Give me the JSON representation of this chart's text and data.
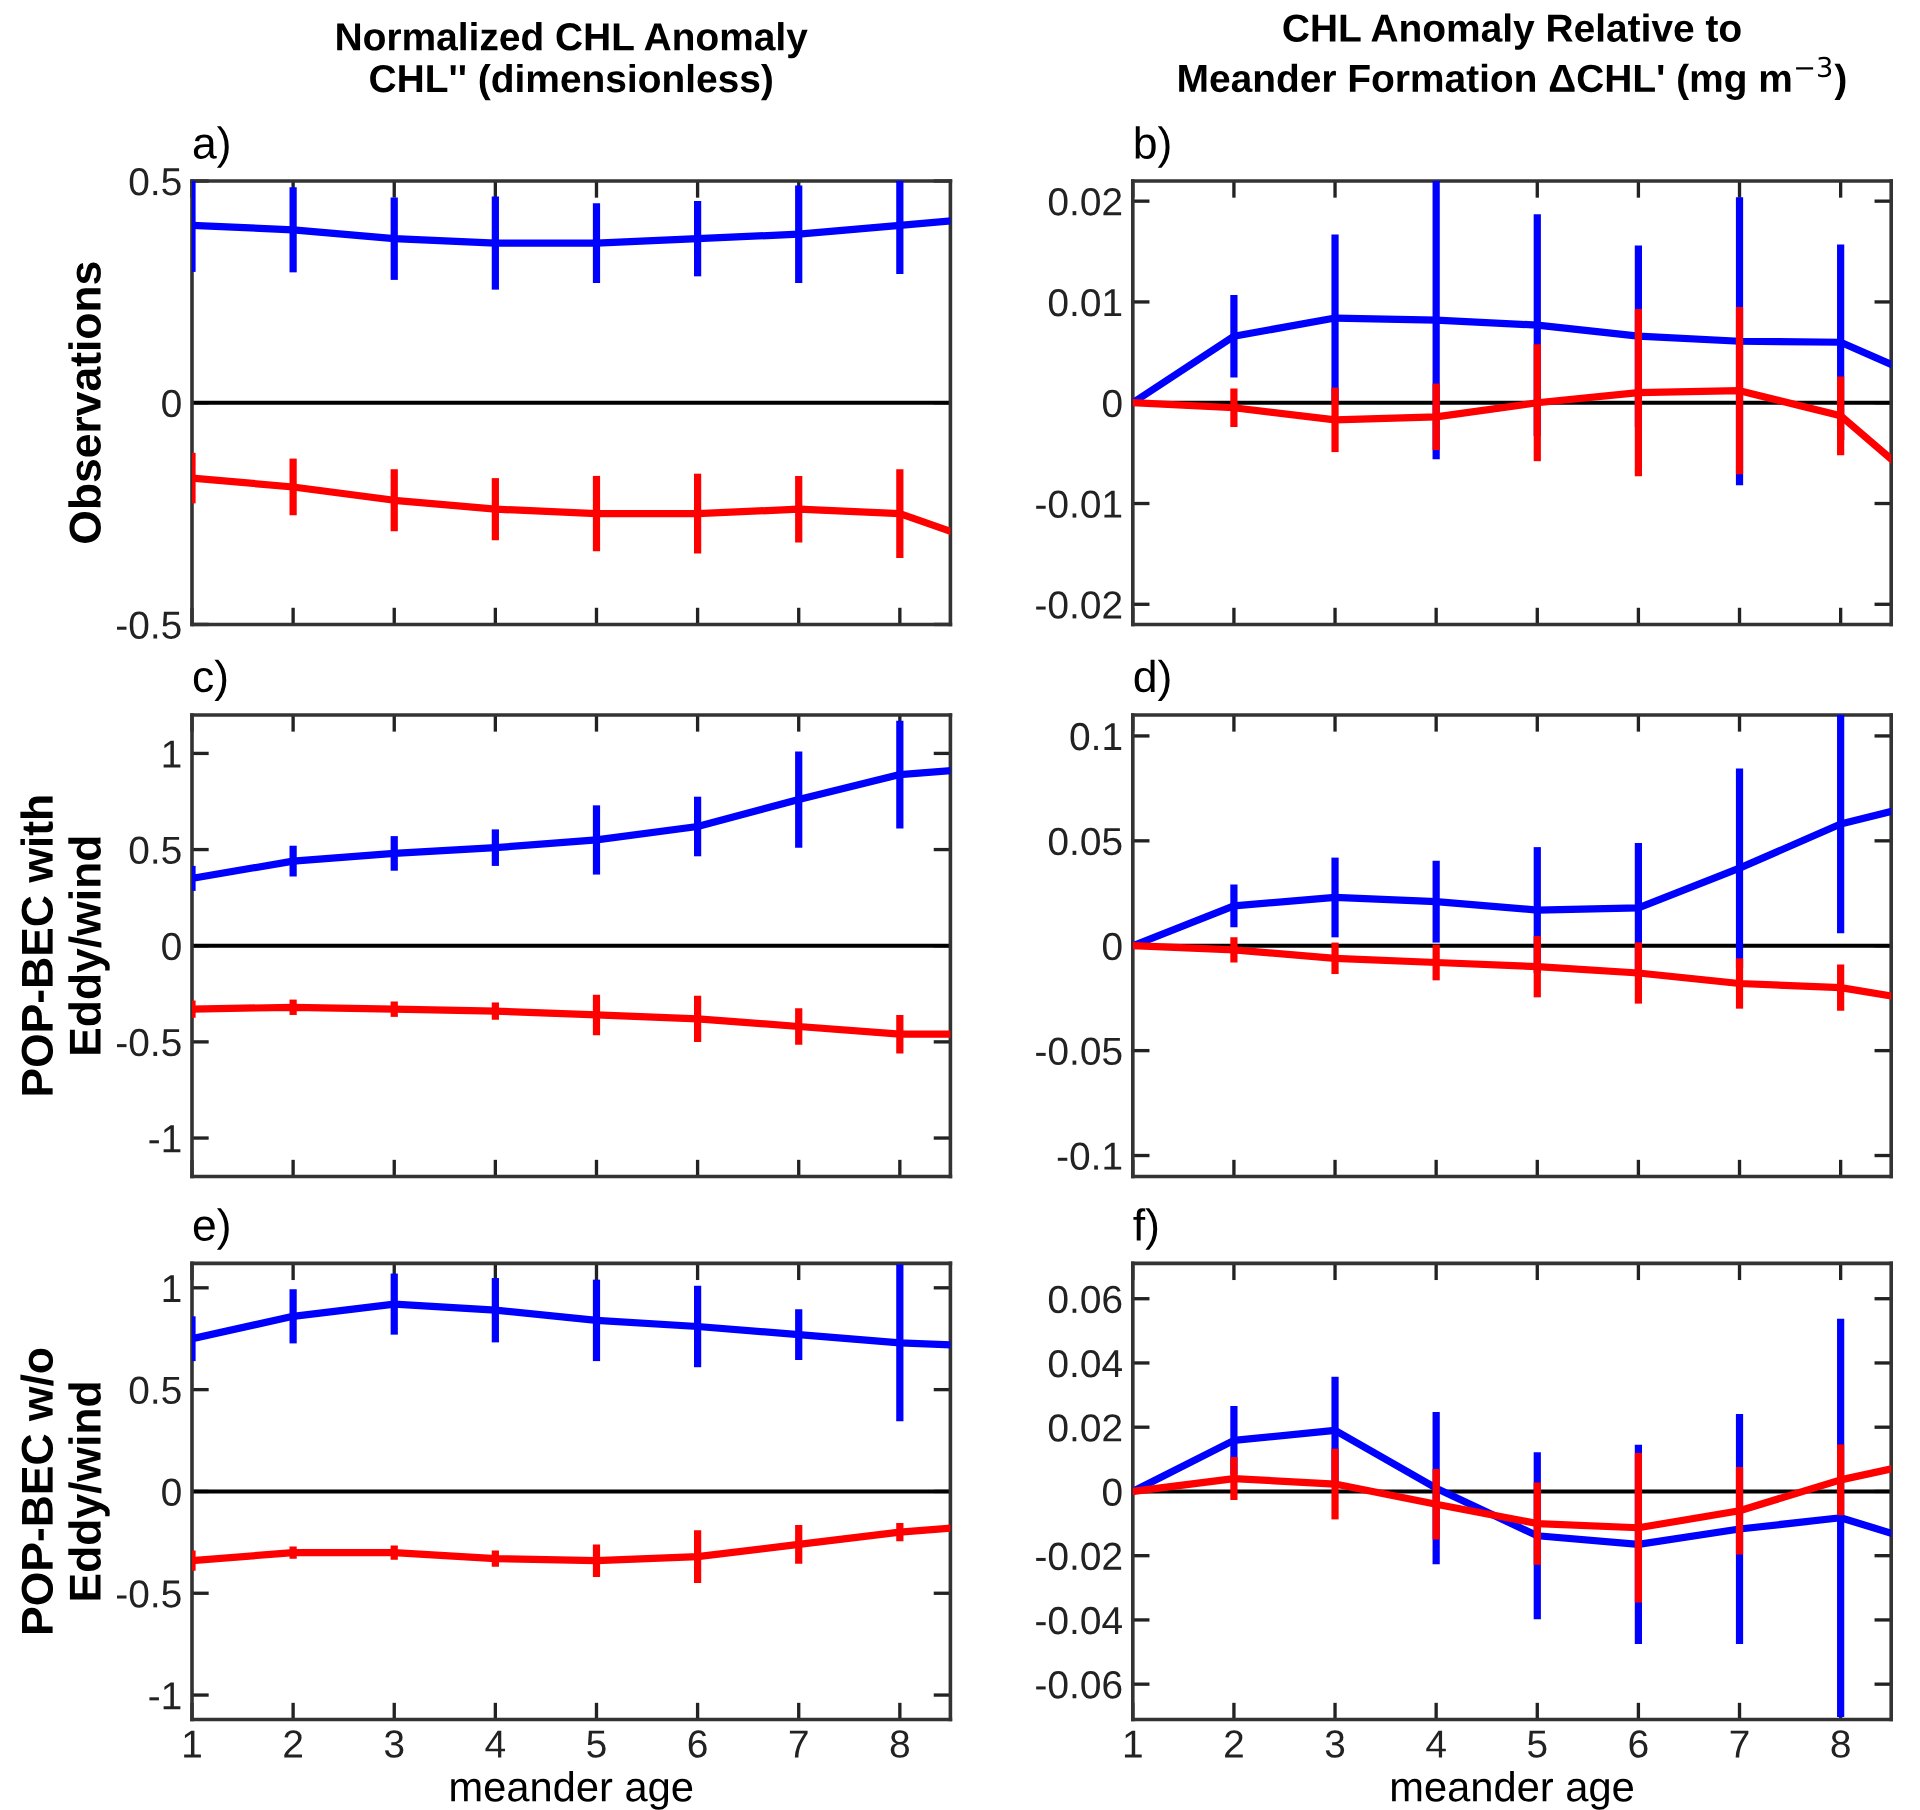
{
  "chart_data": [
    {
      "type": "line",
      "title": "Normalized CHL Anomaly\nCHL'' (dimensionless)",
      "ylabel": "Observations",
      "annotations": [
        "a)"
      ],
      "xlim": [
        1,
        8.5
      ],
      "xticks": [
        1,
        2,
        3,
        4,
        5,
        6,
        7,
        8
      ],
      "ylim": [
        -0.5,
        0.5
      ],
      "yticks": [
        -0.5,
        0,
        0.5
      ],
      "tick_labels": "y",
      "ref_lines": [
        {
          "axis": "y",
          "value": 0,
          "color": "#000000"
        }
      ],
      "series": [
        {
          "color": "#0000ff",
          "x": [
            1,
            2,
            3,
            4,
            5,
            6,
            7,
            8,
            8.5
          ],
          "values": [
            0.4,
            0.39,
            0.37,
            0.36,
            0.36,
            0.37,
            0.38,
            0.4,
            0.41
          ],
          "errors": [
            0.105,
            0.096,
            0.093,
            0.105,
            0.09,
            0.085,
            0.11,
            0.11,
            null
          ]
        },
        {
          "color": "#ff0000",
          "x": [
            1,
            2,
            3,
            4,
            5,
            6,
            7,
            8,
            8.5
          ],
          "values": [
            -0.17,
            -0.19,
            -0.22,
            -0.24,
            -0.25,
            -0.25,
            -0.24,
            -0.25,
            -0.29
          ],
          "errors": [
            0.057,
            0.064,
            0.07,
            0.07,
            0.085,
            0.09,
            0.075,
            0.1,
            null
          ]
        }
      ]
    },
    {
      "type": "line",
      "title": "CHL Anomaly Relative to\nMeander Formation ΔCHL' (mg m$^{−3}$)",
      "annotations": [
        "b)"
      ],
      "xlim": [
        1,
        8.5
      ],
      "xticks": [
        1,
        2,
        3,
        4,
        5,
        6,
        7,
        8
      ],
      "ylim": [
        -0.022,
        0.022
      ],
      "yticks": [
        -0.02,
        -0.01,
        0,
        0.01,
        0.02
      ],
      "tick_labels": "y",
      "ref_lines": [
        {
          "axis": "y",
          "value": 0,
          "color": "#000000"
        }
      ],
      "series": [
        {
          "color": "#0000ff",
          "x": [
            1,
            2,
            3,
            4,
            5,
            6,
            7,
            8,
            8.5
          ],
          "values": [
            0,
            0.0066,
            0.0084,
            0.0082,
            0.0077,
            0.0066,
            0.0061,
            0.006,
            0.0038
          ],
          "errors": [
            null,
            0.0041,
            0.0083,
            0.0138,
            0.011,
            0.009,
            0.0143,
            0.0097,
            null
          ]
        },
        {
          "color": "#ff0000",
          "x": [
            1,
            2,
            3,
            4,
            5,
            6,
            7,
            8,
            8.5
          ],
          "values": [
            0,
            -0.0005,
            -0.0017,
            -0.0014,
            0,
            0.001,
            0.0012,
            -0.0013,
            -0.0056
          ],
          "errors": [
            null,
            0.0019,
            0.0032,
            0.0033,
            0.0058,
            0.0083,
            0.0083,
            0.0039,
            null
          ]
        }
      ]
    },
    {
      "type": "line",
      "ylabel": "POP-BEC with\nEddy/wind",
      "annotations": [
        "c)"
      ],
      "xlim": [
        1,
        8.5
      ],
      "xticks": [
        1,
        2,
        3,
        4,
        5,
        6,
        7,
        8
      ],
      "ylim": [
        -1.2,
        1.2
      ],
      "yticks": [
        -1,
        -0.5,
        0,
        0.5,
        1
      ],
      "tick_labels": "y",
      "ref_lines": [
        {
          "axis": "y",
          "value": 0,
          "color": "#000000"
        }
      ],
      "series": [
        {
          "color": "#0000ff",
          "x": [
            1,
            2,
            3,
            4,
            5,
            6,
            7,
            8,
            8.5
          ],
          "values": [
            0.35,
            0.44,
            0.48,
            0.51,
            0.55,
            0.62,
            0.76,
            0.89,
            0.91
          ],
          "errors": [
            0.065,
            0.08,
            0.09,
            0.095,
            0.18,
            0.155,
            0.25,
            0.28,
            null
          ]
        },
        {
          "color": "#ff0000",
          "x": [
            1,
            2,
            3,
            4,
            5,
            6,
            7,
            8,
            8.5
          ],
          "values": [
            -0.33,
            -0.32,
            -0.33,
            -0.34,
            -0.36,
            -0.38,
            -0.42,
            -0.46,
            -0.46
          ],
          "errors": [
            0.045,
            0.04,
            0.04,
            0.045,
            0.105,
            0.12,
            0.095,
            0.1,
            null
          ]
        }
      ]
    },
    {
      "type": "line",
      "annotations": [
        "d)"
      ],
      "xlim": [
        1,
        8.5
      ],
      "xticks": [
        1,
        2,
        3,
        4,
        5,
        6,
        7,
        8
      ],
      "ylim": [
        -0.11,
        0.11
      ],
      "yticks": [
        -0.1,
        -0.05,
        0,
        0.05,
        0.1
      ],
      "tick_labels": "y",
      "ref_lines": [
        {
          "axis": "y",
          "value": 0,
          "color": "#000000"
        }
      ],
      "series": [
        {
          "color": "#0000ff",
          "x": [
            1,
            2,
            3,
            4,
            5,
            6,
            7,
            8,
            8.5
          ],
          "values": [
            0,
            0.019,
            0.023,
            0.021,
            0.017,
            0.018,
            0.037,
            0.058,
            0.064
          ],
          "errors": [
            null,
            0.0102,
            0.019,
            0.0195,
            0.03,
            0.031,
            0.0475,
            0.052,
            null
          ]
        },
        {
          "color": "#ff0000",
          "x": [
            1,
            2,
            3,
            4,
            5,
            6,
            7,
            8,
            8.5
          ],
          "values": [
            0,
            -0.002,
            -0.006,
            -0.008,
            -0.01,
            -0.013,
            -0.018,
            -0.02,
            -0.024
          ],
          "errors": [
            null,
            0.006,
            0.0075,
            0.0085,
            0.0146,
            0.0146,
            0.012,
            0.011,
            null
          ]
        }
      ]
    },
    {
      "type": "line",
      "ylabel": "POP-BEC w/o\nEddy/wind",
      "xlabel": "meander age",
      "annotations": [
        "e)"
      ],
      "xlim": [
        1,
        8.5
      ],
      "xticks": [
        1,
        2,
        3,
        4,
        5,
        6,
        7,
        8
      ],
      "ylim": [
        -1.12,
        1.12
      ],
      "yticks": [
        -1,
        -0.5,
        0,
        0.5,
        1
      ],
      "ref_lines": [
        {
          "axis": "y",
          "value": 0,
          "color": "#000000"
        }
      ],
      "series": [
        {
          "color": "#0000ff",
          "x": [
            1,
            2,
            3,
            4,
            5,
            6,
            7,
            8,
            8.5
          ],
          "values": [
            0.75,
            0.86,
            0.92,
            0.89,
            0.84,
            0.81,
            0.77,
            0.73,
            0.72
          ],
          "errors": [
            0.11,
            0.133,
            0.15,
            0.158,
            0.2,
            0.2,
            0.125,
            0.385,
            null
          ]
        },
        {
          "color": "#ff0000",
          "x": [
            1,
            2,
            3,
            4,
            5,
            6,
            7,
            8,
            8.5
          ],
          "values": [
            -0.34,
            -0.3,
            -0.3,
            -0.33,
            -0.34,
            -0.32,
            -0.26,
            -0.2,
            -0.18
          ],
          "errors": [
            0.05,
            0.03,
            0.035,
            0.04,
            0.08,
            0.13,
            0.095,
            0.045,
            null
          ]
        }
      ]
    },
    {
      "type": "line",
      "xlabel": "meander age",
      "annotations": [
        "f)"
      ],
      "xlim": [
        1,
        8.5
      ],
      "xticks": [
        1,
        2,
        3,
        4,
        5,
        6,
        7,
        8
      ],
      "ylim": [
        -0.071,
        0.071
      ],
      "yticks": [
        -0.06,
        -0.04,
        -0.02,
        0,
        0.02,
        0.04,
        0.06
      ],
      "ref_lines": [
        {
          "axis": "y",
          "value": 0,
          "color": "#000000"
        }
      ],
      "series": [
        {
          "color": "#0000ff",
          "x": [
            1,
            2,
            3,
            4,
            5,
            6,
            7,
            8,
            8.5
          ],
          "values": [
            0,
            0.0159,
            0.019,
            0.001,
            -0.0138,
            -0.0165,
            -0.0117,
            -0.0082,
            -0.013
          ],
          "errors": [
            null,
            0.0107,
            0.0167,
            0.0237,
            0.026,
            0.031,
            0.0358,
            0.062,
            null
          ]
        },
        {
          "color": "#ff0000",
          "x": [
            1,
            2,
            3,
            4,
            5,
            6,
            7,
            8,
            8.5
          ],
          "values": [
            0,
            0.004,
            0.0023,
            -0.004,
            -0.01,
            -0.0113,
            -0.006,
            0.0036,
            0.007
          ],
          "errors": [
            null,
            0.0067,
            0.011,
            0.011,
            0.0128,
            0.0233,
            0.0136,
            0.011,
            null
          ]
        }
      ]
    }
  ]
}
